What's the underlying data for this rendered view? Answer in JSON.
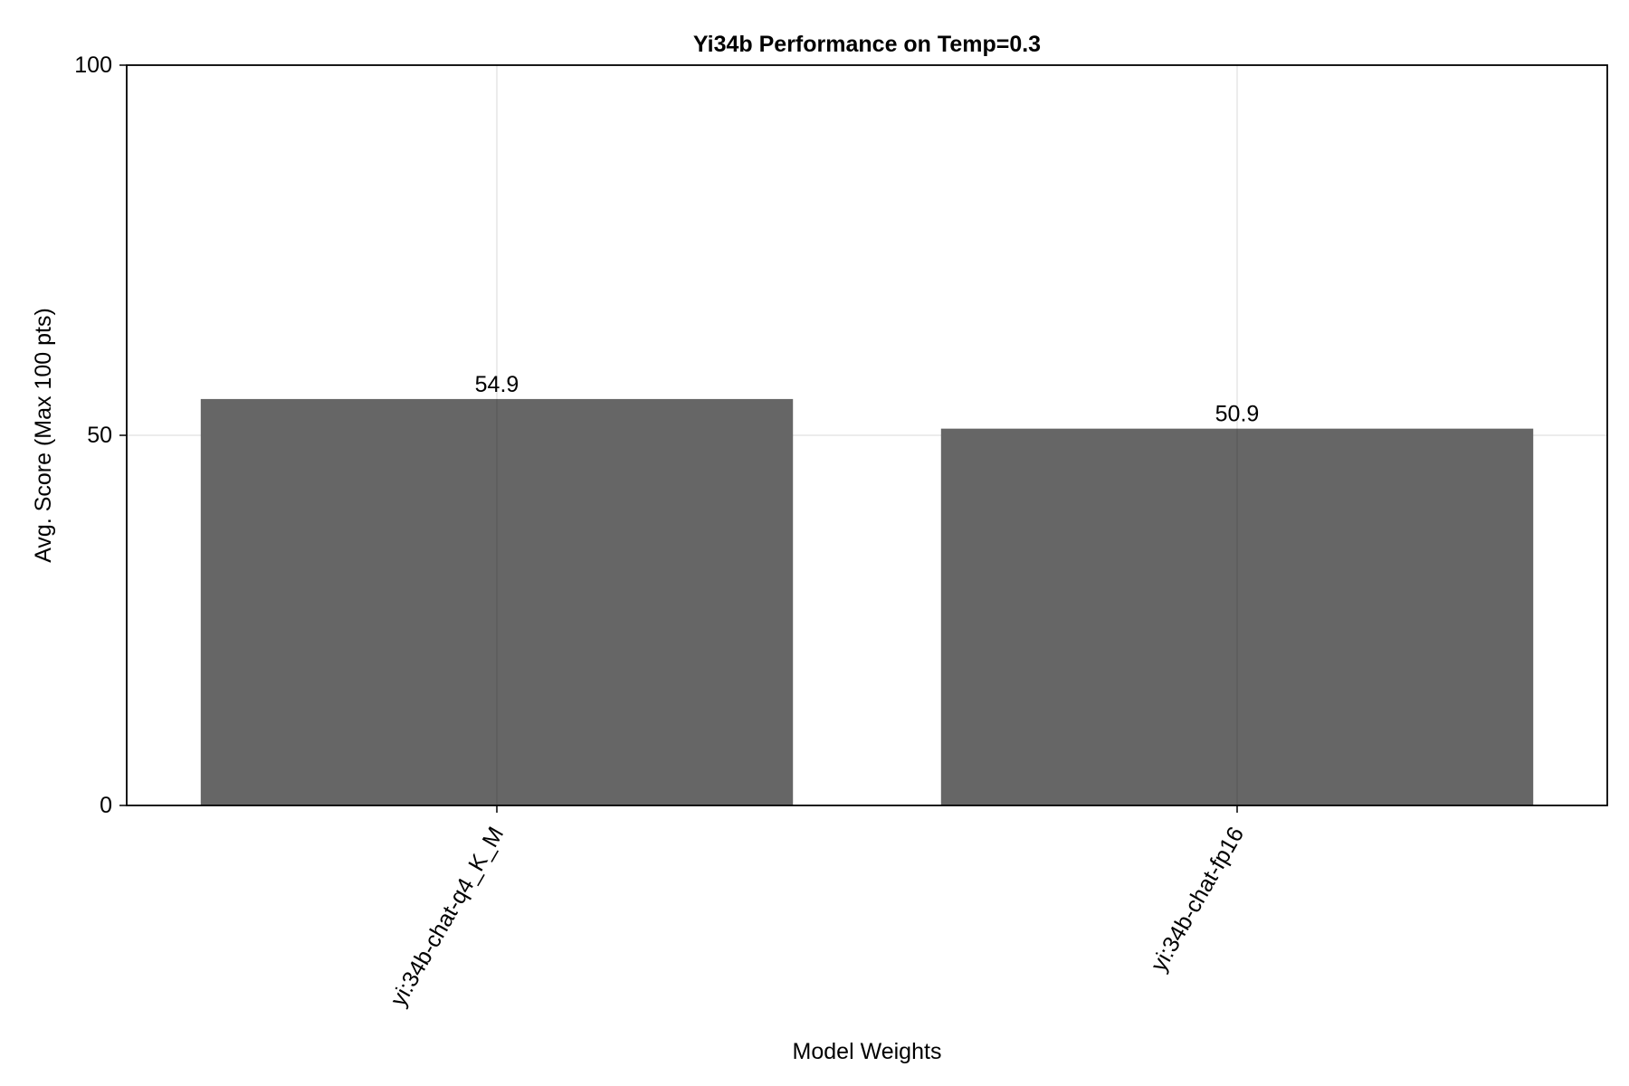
{
  "chart_data": {
    "type": "bar",
    "title": "Yi34b Performance on Temp=0.3",
    "xlabel": "Model Weights",
    "ylabel": "Avg. Score (Max 100 pts)",
    "categories": [
      "yi:34b-chat-q4_K_M",
      "yi:34b-chat-fp16"
    ],
    "values": [
      54.9,
      50.9
    ],
    "data_labels": [
      "54.9",
      "50.9"
    ],
    "ylim": [
      0,
      100
    ],
    "yticks": [
      0,
      50,
      100
    ],
    "ytick_labels": [
      "0",
      "50",
      "100"
    ],
    "grid": true,
    "bar_color": "#666666"
  }
}
